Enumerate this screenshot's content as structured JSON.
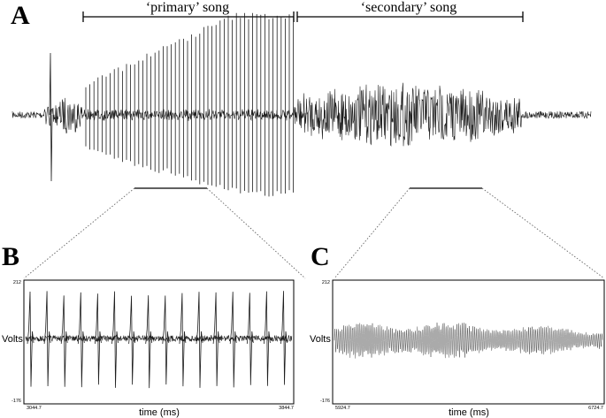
{
  "panels": {
    "a": {
      "letter": "A",
      "brackets": {
        "primary_label": "‘primary’ song",
        "secondary_label": "‘secondary’ song"
      }
    },
    "b": {
      "letter": "B",
      "y_label": "Volts",
      "y_max_label": "212",
      "y_min_label": "-176",
      "x_label": "time (ms)",
      "x_start_label": "3044.7",
      "x_end_label": "3844.7"
    },
    "c": {
      "letter": "C",
      "y_label": "Volts",
      "y_max_label": "212",
      "y_min_label": "-176",
      "x_label": "time (ms)",
      "x_start_label": "5924.7",
      "x_end_label": "6724.7"
    }
  },
  "colors": {
    "trace": "#1e1e1e",
    "trace_light": "#555555",
    "frame": "#000000",
    "zoom_lines": "#666666"
  }
}
